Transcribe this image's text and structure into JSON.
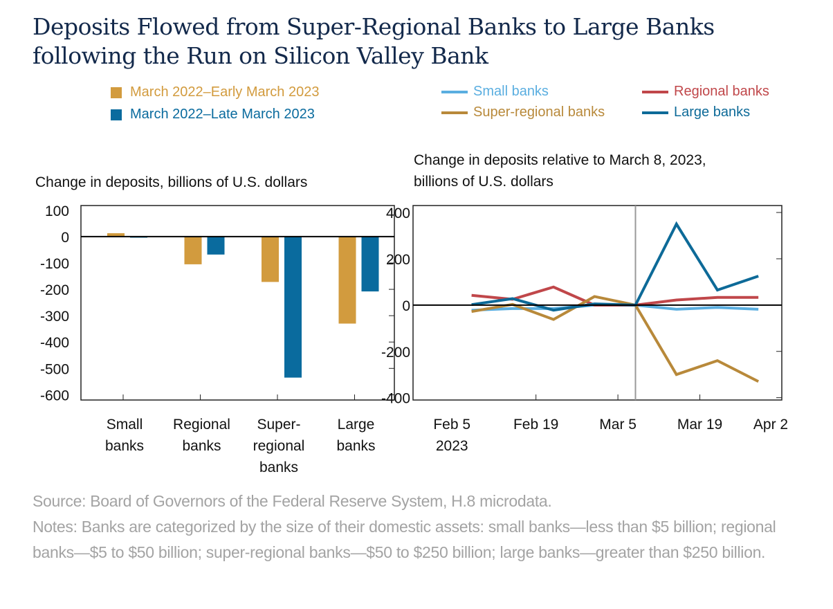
{
  "title": "Deposits Flowed from Super-Regional Banks to Large Banks following the Run on Silicon Valley Bank",
  "chart_data": [
    {
      "type": "bar",
      "subtitle": "Change in deposits, billions of U.S. dollars",
      "categories": [
        "Small banks",
        "Regional banks",
        "Super-regional banks",
        "Large banks"
      ],
      "category_labels": [
        [
          "Small",
          "banks"
        ],
        [
          "Regional",
          "banks"
        ],
        [
          "Super-",
          "regional",
          "banks"
        ],
        [
          "Large",
          "banks"
        ]
      ],
      "series": [
        {
          "name": "March 2022–Early March 2023",
          "color": "#d29b3e",
          "values": [
            13,
            -105,
            -172,
            -330
          ]
        },
        {
          "name": "March 2022–Late March 2023",
          "color": "#0a6b9e",
          "values": [
            -4,
            -68,
            -535,
            -208
          ]
        }
      ],
      "ylim": [
        -620,
        118
      ],
      "yticks": [
        100,
        0,
        -100,
        -200,
        -300,
        -400,
        -500,
        -600
      ],
      "ytick_labels": [
        "100",
        "0",
        "-100",
        "-200",
        "-300",
        "-400",
        "-500",
        "-600"
      ]
    },
    {
      "type": "line",
      "subtitle": [
        "Change in deposits relative to March 8, 2023,",
        "billions of U.S. dollars"
      ],
      "x": [
        "2023-02-08",
        "2023-02-15",
        "2023-02-22",
        "2023-03-01",
        "2023-03-08",
        "2023-03-15",
        "2023-03-22",
        "2023-03-29"
      ],
      "series": [
        {
          "name": "Small banks",
          "color": "#5aaee0",
          "values": [
            -22,
            -15,
            -15,
            0,
            0,
            -18,
            -10,
            -18
          ]
        },
        {
          "name": "Regional banks",
          "color": "#c0474a",
          "values": [
            42,
            25,
            78,
            0,
            0,
            22,
            33,
            33
          ]
        },
        {
          "name": "Super-regional banks",
          "color": "#b8893a",
          "values": [
            -28,
            3,
            -62,
            37,
            0,
            -300,
            -240,
            -330
          ]
        },
        {
          "name": "Large banks",
          "color": "#0d6a98",
          "values": [
            2,
            28,
            -22,
            5,
            0,
            350,
            65,
            125
          ]
        }
      ],
      "reference_line_date": "2023-03-08",
      "xlim": [
        "2023-01-29",
        "2023-04-02"
      ],
      "xticks": [
        "2023-02-05",
        "2023-02-19",
        "2023-03-05",
        "2023-03-19",
        "2023-04-02"
      ],
      "xtick_labels": [
        [
          "Feb 5",
          "2023"
        ],
        [
          "Feb 19"
        ],
        [
          "Mar 5"
        ],
        [
          "Mar 19"
        ],
        [
          "Apr 2"
        ]
      ],
      "ylim": [
        -410,
        430
      ],
      "yticks": [
        400,
        200,
        0,
        -200,
        -400
      ],
      "ytick_labels": [
        "400",
        "200",
        "0",
        "-200",
        "-400"
      ]
    }
  ],
  "notes": {
    "source": "Source: Board of Governors of the Federal Reserve System, H.8 microdata.",
    "text": "Notes: Banks are categorized by the size of their domestic assets: small banks—less than $5 billion; regional banks—$5 to $50 billion; super-regional banks—$50 to $250 billion; large banks—greater than $250 billion."
  }
}
